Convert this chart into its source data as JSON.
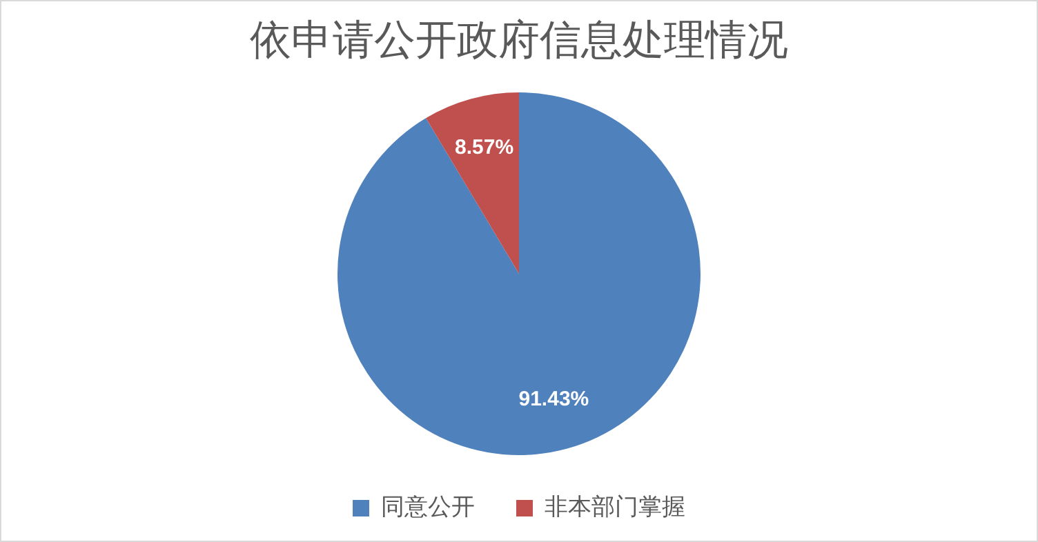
{
  "chart_data": {
    "type": "pie",
    "title": "依申请公开政府信息处理情况",
    "categories": [
      "同意公开",
      "非本部门掌握"
    ],
    "values": [
      91.43,
      8.57
    ],
    "colors": [
      "#4f81bd",
      "#c0504d"
    ],
    "value_labels": [
      "91.43%",
      "8.57%"
    ],
    "legend": "bottom"
  }
}
